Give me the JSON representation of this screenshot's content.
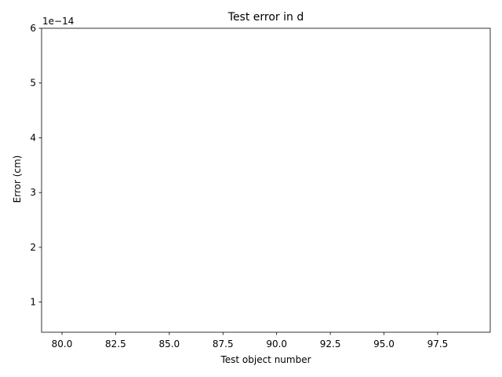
{
  "chart_data": {
    "type": "line",
    "title": "Test error in d",
    "xlabel": "Test object number",
    "ylabel": "Error (cm)",
    "y_offset_text": "1e−14",
    "xlim": [
      79.05,
      99.95
    ],
    "ylim": [
      0.45,
      6.0
    ],
    "x_ticks": [
      80.0,
      82.5,
      85.0,
      87.5,
      90.0,
      92.5,
      95.0,
      97.5
    ],
    "x_tick_labels": [
      "80.0",
      "82.5",
      "85.0",
      "87.5",
      "90.0",
      "92.5",
      "95.0",
      "97.5"
    ],
    "y_ticks": [
      1,
      2,
      3,
      4,
      5,
      6
    ],
    "y_tick_labels": [
      "1",
      "2",
      "3",
      "4",
      "5",
      "6"
    ],
    "y_scale_factor": "1e-14",
    "grid": false,
    "series": []
  },
  "colors": {
    "axis": "#000000",
    "background": "#ffffff"
  }
}
